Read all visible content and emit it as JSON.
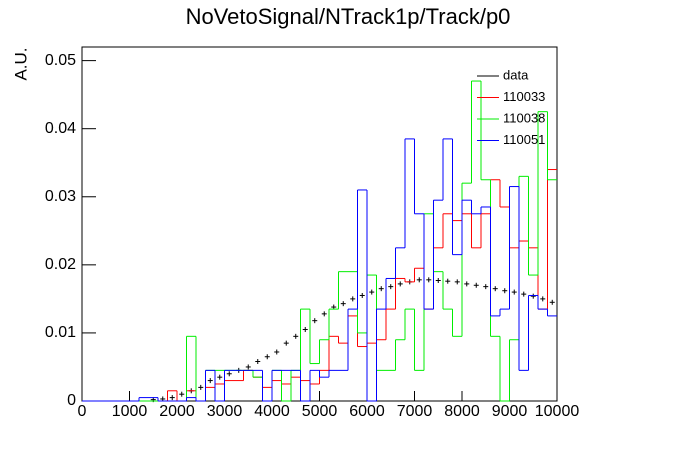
{
  "chart_data": {
    "type": "histogram",
    "title": "NoVetoSignal/NTrack1p/Track/p0",
    "y_label": "A.U.",
    "bins": [
      0,
      200,
      400,
      600,
      800,
      1000,
      1200,
      1400,
      1600,
      1800,
      2000,
      2200,
      2400,
      2600,
      2800,
      3000,
      3200,
      3400,
      3600,
      3800,
      4000,
      4200,
      4400,
      4600,
      4800,
      5000,
      5200,
      5400,
      5600,
      5800,
      6000,
      6200,
      6400,
      6600,
      6800,
      7000,
      7200,
      7400,
      7600,
      7800,
      8000,
      8200,
      8400,
      8600,
      8800,
      9000,
      9200,
      9400,
      9600,
      9800,
      10000
    ],
    "xlim": [
      0,
      10000
    ],
    "xticks": [
      0,
      1000,
      2000,
      3000,
      4000,
      5000,
      6000,
      7000,
      8000,
      9000,
      10000
    ],
    "ylim": [
      0,
      0.052
    ],
    "yticks": [
      0,
      0.01,
      0.02,
      0.03,
      0.04,
      0.05
    ],
    "legend": "top-right",
    "series": [
      {
        "name": "data",
        "color": "#000000",
        "style": "markers",
        "values": [
          0,
          0,
          0,
          0,
          0,
          0,
          0,
          0.0002,
          0.0003,
          0.0005,
          0.001,
          0.0015,
          0.002,
          0.003,
          0.0035,
          0.004,
          0.0045,
          0.005,
          0.0058,
          0.0065,
          0.0072,
          0.0085,
          0.0095,
          0.0105,
          0.0118,
          0.0128,
          0.0138,
          0.0143,
          0.015,
          0.0155,
          0.016,
          0.0165,
          0.0168,
          0.0172,
          0.0175,
          0.0178,
          0.0178,
          0.0177,
          0.0176,
          0.0175,
          0.0172,
          0.017,
          0.0168,
          0.0165,
          0.0162,
          0.016,
          0.0157,
          0.0154,
          0.015,
          0.0145
        ]
      },
      {
        "name": "110033",
        "color": "#ff0000",
        "style": "step",
        "values": [
          0,
          0,
          0,
          0,
          0,
          0,
          0,
          0,
          0,
          0.0015,
          0,
          0.0015,
          0,
          0.002,
          0.0025,
          0.003,
          0.003,
          0.0045,
          0.0035,
          0.002,
          0.003,
          0.0025,
          0.0035,
          0.003,
          0.0025,
          0.0045,
          0.0095,
          0.0085,
          0.0125,
          0.008,
          0.0085,
          0.009,
          0.0135,
          0.018,
          0.0175,
          0.0195,
          0.0135,
          0.0225,
          0.0275,
          0.0265,
          0.0275,
          0.0225,
          0.0275,
          0.0325,
          0.0285,
          0.0225,
          0.0235,
          0.0225,
          0.0135,
          0.034
        ]
      },
      {
        "name": "110038",
        "color": "#00ee00",
        "style": "step",
        "values": [
          0,
          0,
          0,
          0,
          0,
          0,
          0,
          0,
          0,
          0,
          0,
          0.0095,
          0,
          0.0045,
          0.0045,
          0.0045,
          0.0045,
          0.0045,
          0.0035,
          0,
          0.0045,
          0,
          0.0045,
          0.0135,
          0.0055,
          0.009,
          0.0135,
          0.019,
          0.019,
          0.01,
          0.0185,
          0.0045,
          0.0045,
          0.009,
          0.0135,
          0.0045,
          0.0275,
          0.019,
          0.0135,
          0.0095,
          0.032,
          0.047,
          0.0325,
          0.0095,
          0,
          0.009,
          0.033,
          0.0185,
          0.0425,
          0.0325
        ]
      },
      {
        "name": "110051",
        "color": "#0000ff",
        "style": "step",
        "values": [
          0,
          0,
          0,
          0,
          0,
          0,
          0.0005,
          0.0005,
          0,
          0,
          0,
          0.0005,
          0,
          0.0045,
          0,
          0.0045,
          0.0045,
          0.0045,
          0.0045,
          0,
          0.0045,
          0.0045,
          0.0045,
          0,
          0.0045,
          0.0035,
          0.0045,
          0.0045,
          0.0135,
          0.031,
          0,
          0.0135,
          0.018,
          0.0225,
          0.0385,
          0.0275,
          0.0135,
          0.0295,
          0.0385,
          0.0215,
          0.0295,
          0.0275,
          0.0285,
          0.0125,
          0.0135,
          0.0315,
          0.0045,
          0.0155,
          0.0135,
          0.0125
        ]
      }
    ]
  }
}
